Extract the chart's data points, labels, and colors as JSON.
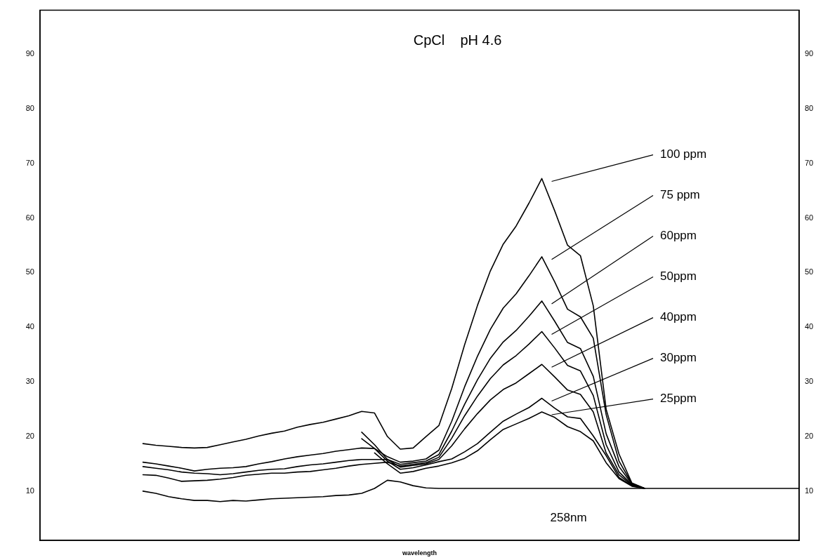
{
  "chart_data": {
    "type": "line",
    "title": "CpCl    pH 4.6",
    "xlabel": "wavelength",
    "categories": [
      null,
      null,
      null,
      null,
      null,
      null,
      null,
      null,
      null,
      null,
      null,
      null,
      null,
      null,
      null,
      null,
      null,
      null,
      null,
      null,
      null,
      null,
      null,
      null,
      null,
      null,
      null,
      null,
      null,
      null,
      null,
      null,
      null,
      null,
      null,
      null,
      null,
      null,
      null,
      null,
      null,
      null,
      null,
      null,
      null,
      null,
      null,
      null,
      null,
      null,
      null,
      null,
      null,
      null,
      null,
      null,
      null,
      null,
      null,
      null
    ],
    "ylim": [
      1,
      98
    ],
    "yticks": [
      10,
      20,
      30,
      40,
      50,
      60,
      70,
      80,
      90
    ],
    "y2lim": [
      1,
      98
    ],
    "y2ticks": [
      10,
      20,
      30,
      40,
      50,
      60,
      70,
      80,
      90
    ],
    "grid": false,
    "legend": false,
    "marker": "none",
    "line_style": "solid",
    "annotations": [
      "258nm"
    ],
    "series": [
      {
        "name": "100 ppm",
        "color": "#000000",
        "values": [
          null,
          null,
          null,
          null,
          null,
          null,
          null,
          null,
          18.7,
          18.4,
          18.2,
          18.0,
          17.9,
          18.0,
          18.5,
          19.0,
          19.5,
          20.1,
          20.6,
          21.0,
          21.7,
          22.2,
          22.6,
          23.2,
          23.8,
          24.6,
          24.3,
          20.0,
          17.7,
          17.9,
          20.0,
          22.0,
          28.8,
          36.8,
          44.0,
          50.3,
          55.2,
          58.5,
          62.7,
          67.2,
          61.3,
          55.0,
          53.1,
          43.9,
          25.0,
          16.8,
          11.5,
          10.5,
          null,
          null,
          null,
          null,
          null,
          null,
          null,
          null,
          null,
          null,
          null,
          null
        ]
      },
      {
        "name": "75 ppm",
        "color": "#000000",
        "values": [
          null,
          null,
          null,
          null,
          null,
          null,
          null,
          null,
          15.3,
          15.0,
          14.6,
          14.2,
          13.7,
          14.0,
          14.2,
          14.3,
          14.5,
          15.0,
          15.4,
          15.9,
          16.3,
          16.6,
          16.9,
          17.3,
          17.6,
          17.9,
          17.8,
          16.3,
          15.3,
          15.5,
          15.9,
          17.5,
          22.8,
          29.1,
          34.7,
          39.6,
          43.5,
          46.1,
          49.4,
          52.9,
          48.3,
          43.3,
          41.9,
          38.0,
          24.0,
          15.5,
          11.4,
          10.5,
          null,
          null,
          null,
          null,
          null,
          null,
          null,
          null,
          null,
          null,
          null,
          null
        ]
      },
      {
        "name": "60ppm",
        "color": "#000000",
        "values": [
          null,
          null,
          null,
          null,
          null,
          null,
          null,
          null,
          14.5,
          14.2,
          13.9,
          13.5,
          13.3,
          13.2,
          13.0,
          13.2,
          13.5,
          13.8,
          14.0,
          14.1,
          14.5,
          14.8,
          15.0,
          15.3,
          15.6,
          15.8,
          15.8,
          15.8,
          14.9,
          15.2,
          15.5,
          16.7,
          21.0,
          25.9,
          30.4,
          34.3,
          37.3,
          39.4,
          42.0,
          44.8,
          41.1,
          37.2,
          36.1,
          31.0,
          20.5,
          14.5,
          11.3,
          10.5,
          null,
          null,
          null,
          null,
          null,
          null,
          null,
          null,
          null,
          null,
          null,
          null
        ]
      },
      {
        "name": "50ppm",
        "color": "#000000",
        "values": [
          null,
          null,
          null,
          null,
          null,
          null,
          null,
          null,
          13.0,
          12.9,
          12.4,
          11.8,
          11.9,
          12.0,
          12.2,
          12.5,
          12.9,
          13.1,
          13.3,
          13.3,
          13.5,
          13.6,
          13.9,
          14.2,
          14.6,
          14.9,
          15.1,
          15.3,
          14.6,
          14.9,
          15.2,
          16.2,
          19.7,
          23.8,
          27.4,
          30.6,
          33.1,
          34.8,
          36.9,
          39.2,
          36.2,
          33.0,
          32.0,
          27.5,
          18.5,
          13.5,
          11.2,
          10.5,
          null,
          null,
          null,
          null,
          null,
          null,
          null,
          null,
          null,
          null,
          null,
          null
        ]
      },
      {
        "name": "40ppm",
        "color": "#000000",
        "values": [
          null,
          null,
          null,
          null,
          null,
          null,
          null,
          null,
          null,
          null,
          null,
          null,
          null,
          null,
          null,
          null,
          null,
          null,
          null,
          null,
          null,
          null,
          null,
          null,
          null,
          20.8,
          18.5,
          15.8,
          14.4,
          14.7,
          15.0,
          15.8,
          18.3,
          21.4,
          24.2,
          26.7,
          28.6,
          29.8,
          31.5,
          33.2,
          30.9,
          28.5,
          27.7,
          24.5,
          17.0,
          13.0,
          11.1,
          10.5,
          null,
          null,
          null,
          null,
          null,
          null,
          null,
          null,
          null,
          null,
          null,
          null
        ]
      },
      {
        "name": "30ppm",
        "color": "#000000",
        "values": [
          null,
          null,
          null,
          null,
          null,
          null,
          null,
          null,
          null,
          null,
          null,
          null,
          null,
          null,
          null,
          null,
          null,
          null,
          null,
          null,
          null,
          null,
          null,
          null,
          null,
          19.6,
          17.8,
          15.5,
          14.0,
          14.3,
          14.8,
          15.4,
          15.9,
          17.2,
          18.7,
          20.8,
          22.8,
          24.1,
          25.3,
          27.0,
          25.2,
          23.6,
          23.3,
          20.1,
          16.5,
          12.5,
          11.0,
          10.5,
          null,
          null,
          null,
          null,
          null,
          null,
          null,
          null,
          null,
          null,
          null,
          null
        ]
      },
      {
        "name": "25ppm",
        "color": "#000000",
        "values": [
          null,
          null,
          null,
          null,
          null,
          null,
          null,
          null,
          null,
          null,
          null,
          null,
          null,
          null,
          null,
          null,
          null,
          null,
          null,
          null,
          null,
          null,
          null,
          null,
          null,
          null,
          17.0,
          15.0,
          13.3,
          13.6,
          14.2,
          14.6,
          15.2,
          16.0,
          17.4,
          19.4,
          21.3,
          22.3,
          23.3,
          24.5,
          23.5,
          21.8,
          20.9,
          19.2,
          15.2,
          12.3,
          10.9,
          10.5,
          null,
          null,
          null,
          null,
          null,
          null,
          null,
          null,
          null,
          null,
          null,
          null
        ]
      },
      {
        "color": "#000000",
        "values": [
          null,
          null,
          null,
          null,
          null,
          null,
          null,
          null,
          10.0,
          9.6,
          9.0,
          8.6,
          8.3,
          8.3,
          8.1,
          8.3,
          8.2,
          8.4,
          8.6,
          8.7,
          8.8,
          8.9,
          9.0,
          9.2,
          9.3,
          9.6,
          10.5,
          12.0,
          11.7,
          11.0,
          10.6,
          10.5,
          10.5,
          10.5,
          10.5,
          10.5,
          10.5,
          10.5,
          10.5,
          10.5,
          10.5,
          10.5,
          10.5,
          10.5,
          10.5,
          10.5,
          10.5,
          10.5,
          10.5,
          10.5,
          10.5,
          10.5,
          10.5,
          10.5,
          10.5,
          10.5,
          10.5,
          10.5,
          10.5,
          10.5
        ]
      }
    ]
  }
}
